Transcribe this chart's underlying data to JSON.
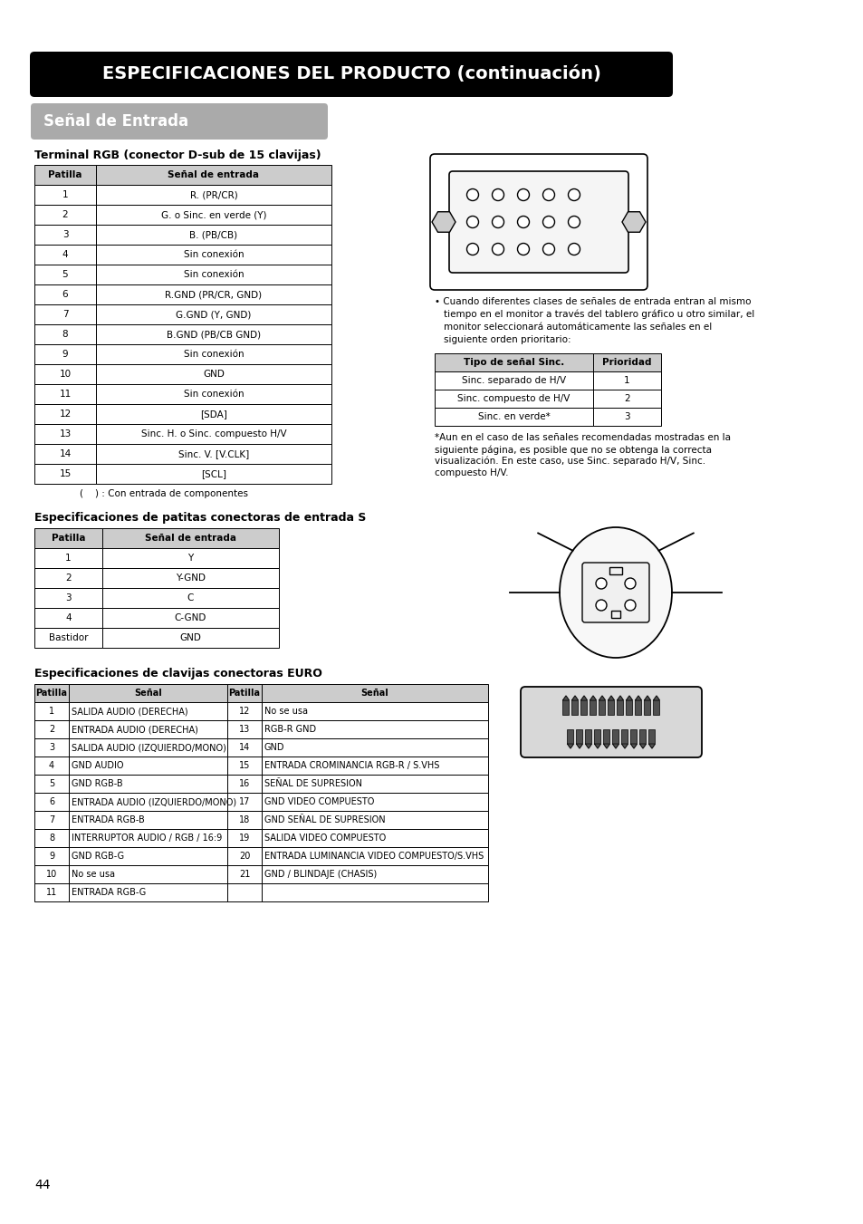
{
  "page_bg": "#ffffff",
  "top_banner_bg": "#000000",
  "top_banner_text": "ESPECIFICACIONES DEL PRODUCTO (continuación)",
  "top_banner_text_color": "#ffffff",
  "section_header_bg": "#aaaaaa",
  "section_header_text": "Señal de Entrada",
  "section_header_text_color": "#ffffff",
  "subsection1_title": "Terminal RGB (conector D-sub de 15 clavijas)",
  "table1_headers": [
    "Patilla",
    "Señal de entrada"
  ],
  "table1_rows": [
    [
      "1",
      "R. (PR/CR)"
    ],
    [
      "2",
      "G. o Sinc. en verde (Y)"
    ],
    [
      "3",
      "B. (PB/CB)"
    ],
    [
      "4",
      "Sin conexión"
    ],
    [
      "5",
      "Sin conexión"
    ],
    [
      "6",
      "R.GND (PR/CR, GND)"
    ],
    [
      "7",
      "G.GND (Y, GND)"
    ],
    [
      "8",
      "B.GND (PB/CB GND)"
    ],
    [
      "9",
      "Sin conexión"
    ],
    [
      "10",
      "GND"
    ],
    [
      "11",
      "Sin conexión"
    ],
    [
      "12",
      "[SDA]"
    ],
    [
      "13",
      "Sinc. H. o Sinc. compuesto H/V"
    ],
    [
      "14",
      "Sinc. V. [V.CLK]"
    ],
    [
      "15",
      "[SCL]"
    ]
  ],
  "table1_note": "(    ) : Con entrada de componentes",
  "table2_headers": [
    "Tipo de señal Sinc.",
    "Prioridad"
  ],
  "table2_rows": [
    [
      "Sinc. separado de H/V",
      "1"
    ],
    [
      "Sinc. compuesto de H/V",
      "2"
    ],
    [
      "Sinc. en verde*",
      "3"
    ]
  ],
  "note1_bullet": "• Cuando diferentes clases de señales de entrada entran al mismo",
  "note1_lines": [
    "tiempo en el monitor a través del tablero gráfico u otro similar, el",
    "monitor seleccionará automáticamente las señales en el",
    "siguiente orden prioritario:"
  ],
  "note2_lines": [
    "*Aun en el caso de las señales recomendadas mostradas en la",
    "siguiente página, es posible que no se obtenga la correcta",
    "visualización. En este caso, use Sinc. separado H/V, Sinc.",
    "compuesto H/V."
  ],
  "subsection2_title": "Especificaciones de patitas conectoras de entrada S",
  "table3_headers": [
    "Patilla",
    "Señal de entrada"
  ],
  "table3_rows": [
    [
      "1",
      "Y"
    ],
    [
      "2",
      "Y-GND"
    ],
    [
      "3",
      "C"
    ],
    [
      "4",
      "C-GND"
    ],
    [
      "Bastidor",
      "GND"
    ]
  ],
  "subsection3_title": "Especificaciones de clavijas conectoras EURO",
  "table4_headers": [
    "Patilla",
    "Señal",
    "Patilla",
    "Señal"
  ],
  "table4_rows": [
    [
      "1",
      "SALIDA AUDIO (DERECHA)",
      "12",
      "No se usa"
    ],
    [
      "2",
      "ENTRADA AUDIO (DERECHA)",
      "13",
      "RGB-R GND"
    ],
    [
      "3",
      "SALIDA AUDIO (IZQUIERDO/MONO)",
      "14",
      "GND"
    ],
    [
      "4",
      "GND AUDIO",
      "15",
      "ENTRADA CROMINANCIA RGB-R / S.VHS"
    ],
    [
      "5",
      "GND RGB-B",
      "16",
      "SEÑAL DE SUPRESION"
    ],
    [
      "6",
      "ENTRADA AUDIO (IZQUIERDO/MONO)",
      "17",
      "GND VIDEO COMPUESTO"
    ],
    [
      "7",
      "ENTRADA RGB-B",
      "18",
      "GND SEÑAL DE SUPRESION"
    ],
    [
      "8",
      "INTERRUPTOR AUDIO / RGB / 16:9",
      "19",
      "SALIDA VIDEO COMPUESTO"
    ],
    [
      "9",
      "GND RGB-G",
      "20",
      "ENTRADA LUMINANCIA VIDEO COMPUESTO/S.VHS"
    ],
    [
      "10",
      "No se usa",
      "21",
      "GND / BLINDAJE (CHASIS)"
    ],
    [
      "11",
      "ENTRADA RGB-G",
      "",
      ""
    ]
  ],
  "page_number": "44"
}
